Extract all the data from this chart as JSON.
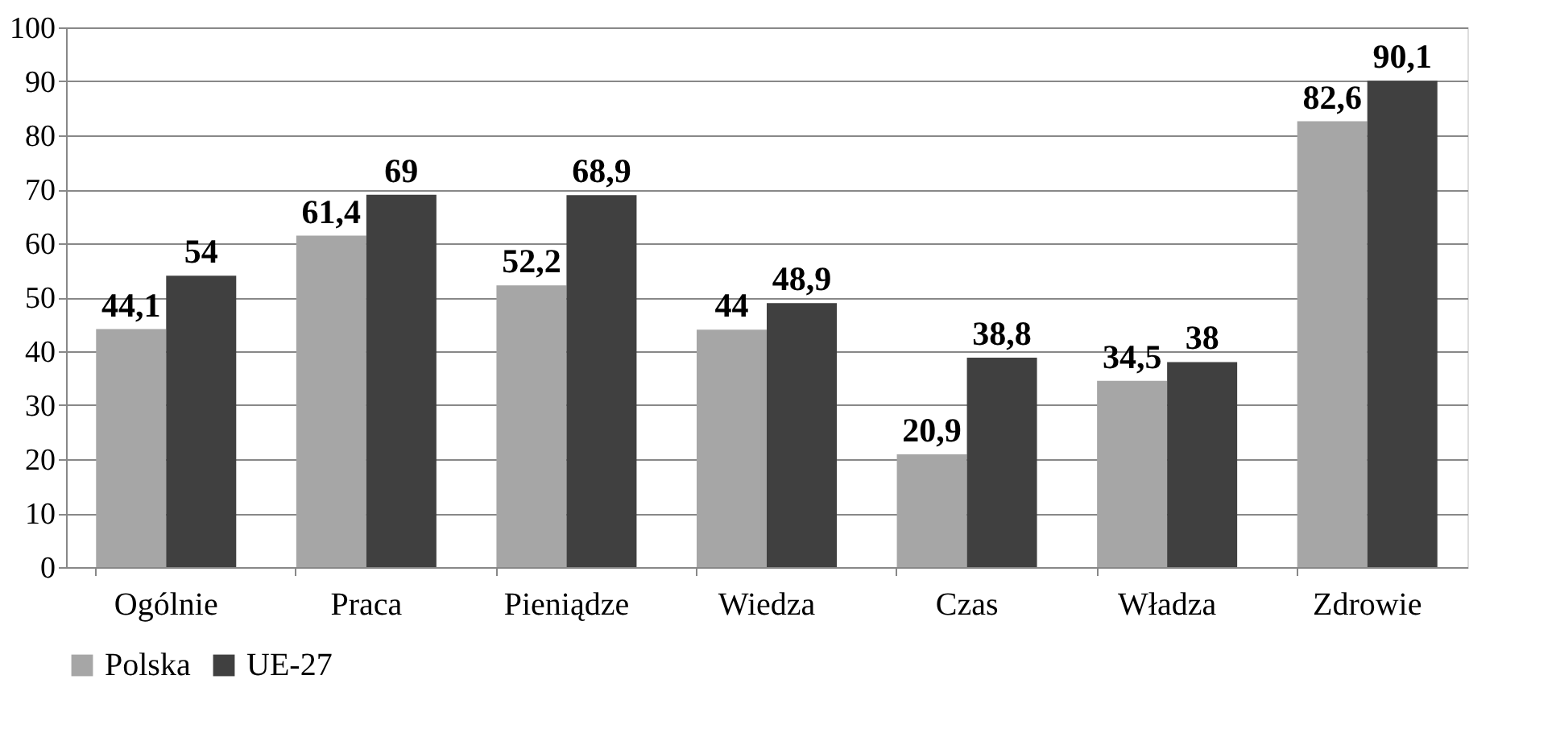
{
  "chart_data": {
    "type": "bar",
    "categories": [
      "Ogólnie",
      "Praca",
      "Pieniądze",
      "Wiedza",
      "Czas",
      "Władza",
      "Zdrowie"
    ],
    "series": [
      {
        "name": "Polska",
        "color": "#a6a6a6",
        "values": [
          44.1,
          61.4,
          52.2,
          44,
          20.9,
          34.5,
          82.6
        ],
        "value_labels": [
          "44,1",
          "61,4",
          "52,2",
          "44",
          "20,9",
          "34,5",
          "82,6"
        ]
      },
      {
        "name": "UE-27",
        "color": "#404040",
        "values": [
          54,
          69,
          68.9,
          48.9,
          38.8,
          38,
          90.1
        ],
        "value_labels": [
          "54",
          "69",
          "68,9",
          "48,9",
          "38,8",
          "38",
          "90,1"
        ]
      }
    ],
    "ylim": [
      0,
      100
    ],
    "yticks": [
      0,
      10,
      20,
      30,
      40,
      50,
      60,
      70,
      80,
      90,
      100
    ],
    "grid": "y",
    "legend": "bottom"
  }
}
